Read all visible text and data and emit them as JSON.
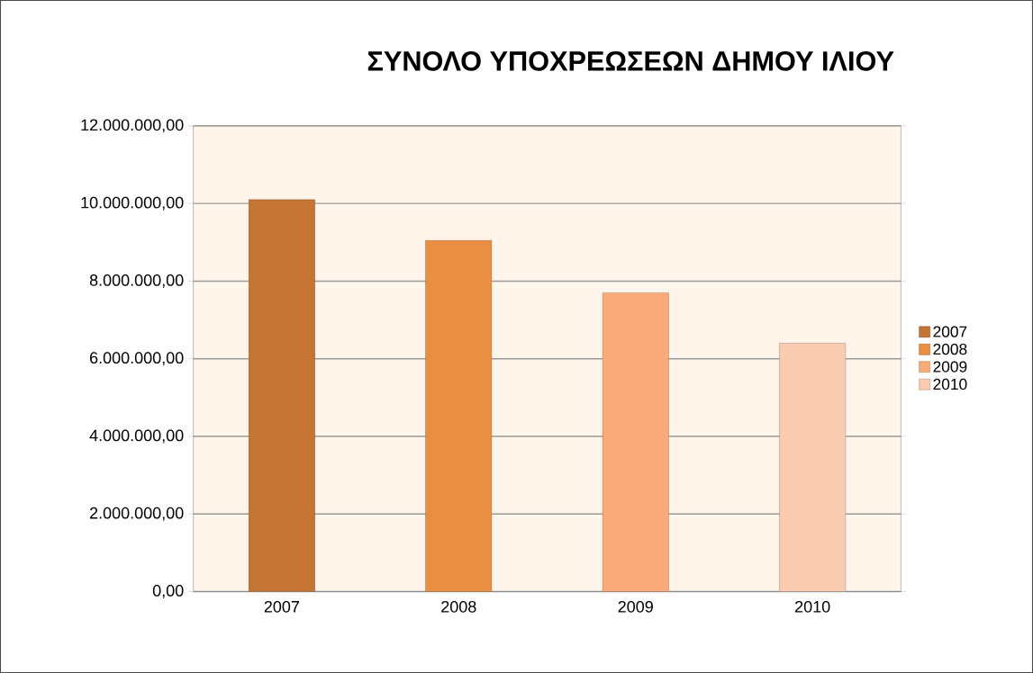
{
  "chart_data": {
    "type": "bar",
    "title": "ΣΥΝΟΛΟ ΥΠΟΧΡΕΩΣΕΩΝ ΔΗΜΟΥ ΙΛΙΟΥ",
    "categories": [
      "2007",
      "2008",
      "2009",
      "2010"
    ],
    "series": [
      {
        "name": "2007",
        "color": "#c47433",
        "values": [
          10100000,
          null,
          null,
          null
        ]
      },
      {
        "name": "2008",
        "color": "#e98f43",
        "values": [
          null,
          9050000,
          null,
          null
        ]
      },
      {
        "name": "2009",
        "color": "#f8ab78",
        "values": [
          null,
          null,
          7700000,
          null
        ]
      },
      {
        "name": "2010",
        "color": "#f9cbb0",
        "values": [
          null,
          null,
          null,
          6400000
        ]
      }
    ],
    "ylim": [
      0,
      12000000
    ],
    "yticks": [
      {
        "value": 0,
        "label": "0,00"
      },
      {
        "value": 2000000,
        "label": "2.000.000,00"
      },
      {
        "value": 4000000,
        "label": "4.000.000,00"
      },
      {
        "value": 6000000,
        "label": "6.000.000,00"
      },
      {
        "value": 8000000,
        "label": "8.000.000,00"
      },
      {
        "value": 10000000,
        "label": "10.000.000,00"
      },
      {
        "value": 12000000,
        "label": "12.000.000,00"
      }
    ],
    "grid": "y",
    "legend": "right"
  }
}
